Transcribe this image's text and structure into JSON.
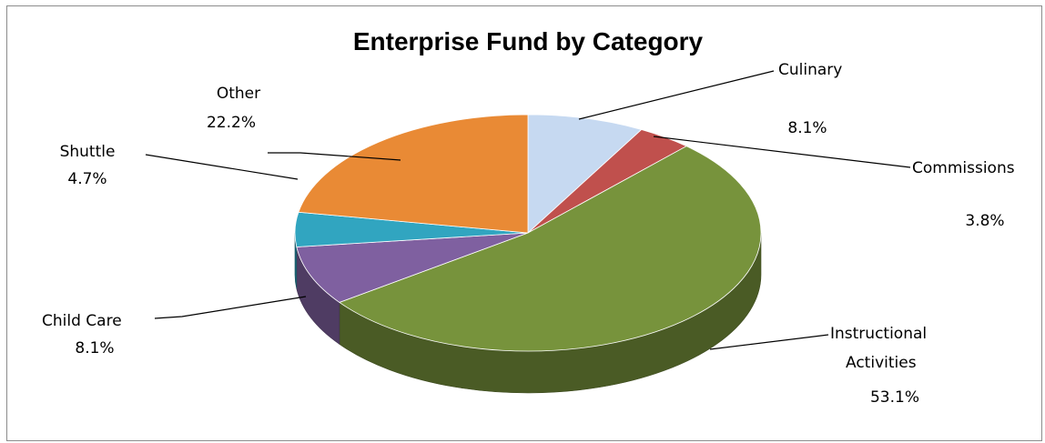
{
  "chart_data": {
    "type": "pie",
    "title": "Enterprise Fund by Category",
    "slices": [
      {
        "name": "Culinary",
        "value": 8.1,
        "label": "8.1%",
        "color": "#c6d9f1"
      },
      {
        "name": "Commissions",
        "value": 3.8,
        "label": "3.8%",
        "color": "#c0504d"
      },
      {
        "name": "Instructional Activities",
        "value": 53.1,
        "label": "53.1%",
        "color": "#77933c"
      },
      {
        "name": "Child Care",
        "value": 8.1,
        "label": "8.1%",
        "color": "#7f60a0"
      },
      {
        "name": "Shuttle",
        "value": 4.7,
        "label": "4.7%",
        "color": "#31a5c0"
      },
      {
        "name": "Other",
        "value": 22.2,
        "label": "22.2%",
        "color": "#e98a35"
      }
    ],
    "style": "3d"
  }
}
